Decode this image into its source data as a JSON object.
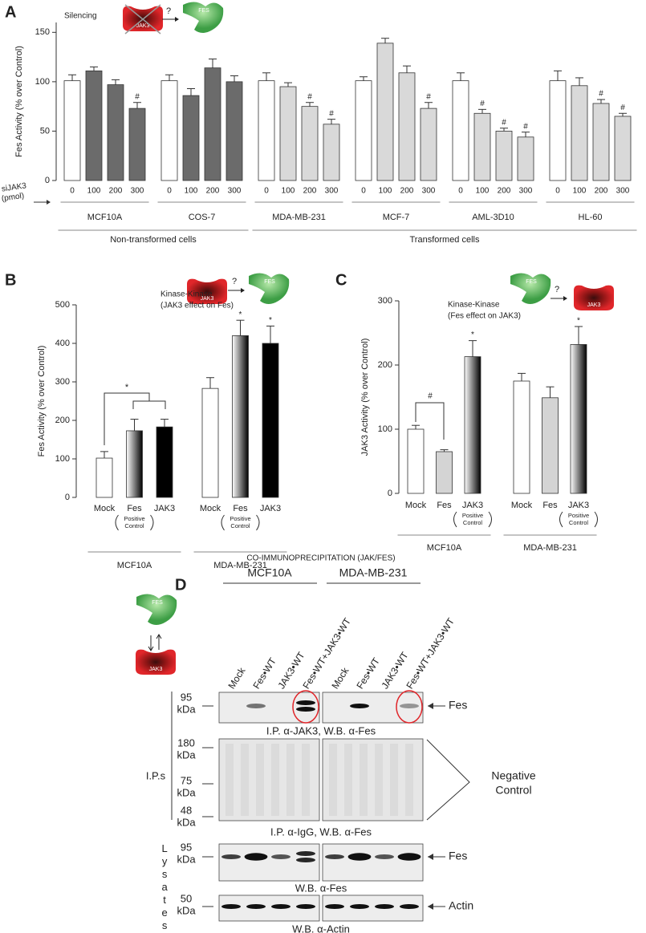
{
  "panel_labels": [
    "A",
    "B",
    "C",
    "D"
  ],
  "icon_labels": {
    "jak3": "JAK3",
    "fes": "FES",
    "question": "?"
  },
  "chart_data": [
    {
      "type": "grouped_bar",
      "inset_label": "Silencing",
      "y_label": "Fes Activity (% over Control)",
      "x_label": [
        "siJAK3",
        "(pmol)"
      ],
      "ylim": [
        0,
        160
      ],
      "yticks": [
        0,
        50,
        100,
        150
      ],
      "categories": [
        0,
        100,
        200,
        300
      ],
      "control_color": "#ffffff",
      "supergroups": [
        {
          "label": "Non-transformed cells",
          "groups": [
            {
              "name": "MCF10A",
              "color": "#6b6b6b",
              "values": [
                101,
                111,
                97,
                73
              ],
              "errors": [
                6,
                4,
                5,
                6
              ],
              "annotations": [
                null,
                null,
                null,
                "#"
              ]
            },
            {
              "name": "COS-7",
              "color": "#6b6b6b",
              "values": [
                101,
                86,
                114,
                100
              ],
              "errors": [
                6,
                7,
                9,
                6
              ],
              "annotations": [
                null,
                null,
                null,
                null
              ]
            }
          ]
        },
        {
          "label": "Transformed cells",
          "groups": [
            {
              "name": "MDA-MB-231",
              "color": "#d9d9d9",
              "values": [
                101,
                95,
                75,
                57
              ],
              "errors": [
                8,
                4,
                4,
                5
              ],
              "annotations": [
                null,
                null,
                "#",
                "#"
              ]
            },
            {
              "name": "MCF-7",
              "color": "#d9d9d9",
              "values": [
                101,
                139,
                109,
                73
              ],
              "errors": [
                4,
                5,
                7,
                6
              ],
              "annotations": [
                null,
                null,
                null,
                "#"
              ]
            },
            {
              "name": "AML-3D10",
              "color": "#d9d9d9",
              "values": [
                101,
                68,
                50,
                44
              ],
              "errors": [
                8,
                4,
                3,
                5
              ],
              "annotations": [
                null,
                "#",
                "#",
                "#"
              ]
            },
            {
              "name": "HL-60",
              "color": "#d9d9d9",
              "values": [
                101,
                96,
                78,
                65
              ],
              "errors": [
                10,
                8,
                4,
                3
              ],
              "annotations": [
                null,
                null,
                "#",
                "#"
              ]
            }
          ]
        }
      ]
    },
    {
      "type": "grouped_bar",
      "title": [
        "Kinase-Kinase",
        "(JAK3 effect on Fes)"
      ],
      "y_label": "Fes Activity (% over Control)",
      "ylim": [
        0,
        500
      ],
      "yticks": [
        0,
        100,
        200,
        300,
        400,
        500
      ],
      "categories": [
        "Mock",
        "Fes",
        "JAK3"
      ],
      "category_notes": [
        null,
        [
          "Positive",
          "Control"
        ],
        null
      ],
      "category_fills": [
        "#ffffff",
        "gradient",
        "#000000"
      ],
      "bracket_label": "*",
      "groups": [
        {
          "name": "MCF10A",
          "values": [
            102,
            173,
            183
          ],
          "errors": [
            17,
            30,
            20
          ],
          "annotations": [
            null,
            null,
            null
          ]
        },
        {
          "name": "MDA-MB-231",
          "values": [
            283,
            420,
            400
          ],
          "errors": [
            28,
            40,
            45
          ],
          "annotations": [
            null,
            "*",
            "*"
          ]
        }
      ]
    },
    {
      "type": "grouped_bar",
      "title": [
        "Kinase-Kinase",
        "(Fes effect on JAK3)"
      ],
      "y_label": "JAK3 Activity (% over Control)",
      "ylim": [
        0,
        300
      ],
      "yticks": [
        0,
        100,
        200,
        300
      ],
      "categories": [
        "Mock",
        "Fes",
        "JAK3"
      ],
      "category_notes": [
        null,
        null,
        [
          "Positive",
          "Control"
        ]
      ],
      "category_fills": [
        "#ffffff",
        "#d4d4d4",
        "gradient"
      ],
      "bracket_label": "#",
      "groups": [
        {
          "name": "MCF10A",
          "values": [
            100,
            65,
            213
          ],
          "errors": [
            6,
            3,
            25
          ],
          "annotations": [
            null,
            null,
            "*"
          ]
        },
        {
          "name": "MDA-MB-231",
          "values": [
            175,
            149,
            232
          ],
          "errors": [
            12,
            17,
            28
          ],
          "annotations": [
            null,
            null,
            "*"
          ]
        }
      ]
    }
  ],
  "panel_d": {
    "title": "CO-IMMUNOPRECIPITATION (JAK/FES)",
    "cell_lines": [
      "MCF10A",
      "MDA-MB-231"
    ],
    "lanes": [
      "Mock",
      "Fes•WT",
      "JAK3•WT",
      "Fes•WT+JAK3•WT"
    ],
    "unit": "kDa",
    "ip_label": "I.P.s",
    "lysates_label": "Lysates",
    "blots": [
      {
        "markers": [
          95
        ],
        "caption": "I.P. α-JAK3, W.B. α-Fes",
        "target": [
          "Fes"
        ]
      },
      {
        "markers": [
          180,
          75,
          48
        ],
        "caption": "I.P. α-IgG, W.B. α-Fes",
        "target": [
          "Negative",
          "Control"
        ]
      },
      {
        "markers": [
          95
        ],
        "caption": "W.B. α-Fes",
        "target": [
          "Fes"
        ]
      },
      {
        "markers": [
          50
        ],
        "caption": "W.B. α-Actin",
        "target": [
          "Actin"
        ]
      }
    ]
  }
}
